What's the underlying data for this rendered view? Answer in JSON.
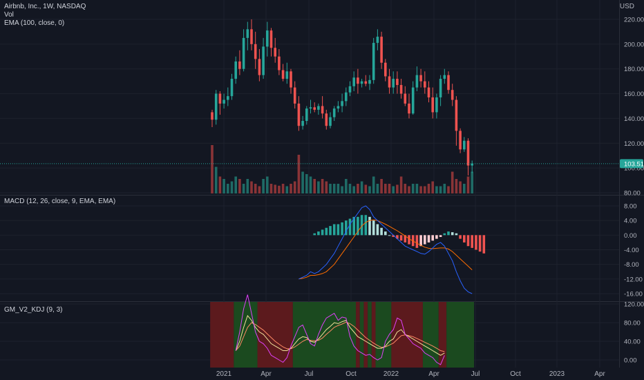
{
  "header": {
    "symbol": "Airbnb, Inc., 1W, NASDAQ",
    "vol_label": "Vol",
    "ema_label": "EMA (100, close, 0)",
    "currency": "USD",
    "last_price": "103.51"
  },
  "colors": {
    "background": "#131722",
    "grid": "#1e222d",
    "up": "#26a69a",
    "down": "#ef5350",
    "up_volume": "#1f6b66",
    "down_volume": "#8a3437",
    "macd_line": "#2962ff",
    "signal_line": "#ff6d00",
    "kdj_bull_bg": "#1b4a1f",
    "kdj_bear_bg": "#5c1a1d",
    "k_line": "#f2e39b",
    "d_line": "#ff8a65",
    "j_line": "#e040fb",
    "price_tag": "#26a69a"
  },
  "panels": {
    "macd_label": "MACD (12, 26, close, 9, EMA, EMA)",
    "kdj_label": "GM_V2_KDJ (9, 3)"
  },
  "chart_data": [
    {
      "type": "candlestick",
      "title": "Airbnb, Inc., 1W, NASDAQ",
      "ylim": [
        75,
        225
      ],
      "y_ticks": [
        "220.00",
        "200.00",
        "180.00",
        "160.00",
        "140.00",
        "120.00",
        "100.00",
        "80.00"
      ],
      "x_ticks": [
        "2021",
        "Apr",
        "Jul",
        "Oct",
        "2022",
        "Apr",
        "Jul",
        "Oct",
        "2023",
        "Apr"
      ],
      "candles": [
        [
          145,
          147,
          133,
          139
        ],
        [
          139,
          163,
          135,
          160
        ],
        [
          160,
          162,
          143,
          152
        ],
        [
          152,
          160,
          148,
          155
        ],
        [
          155,
          165,
          150,
          158
        ],
        [
          158,
          176,
          155,
          172
        ],
        [
          172,
          190,
          168,
          186
        ],
        [
          186,
          195,
          175,
          180
        ],
        [
          180,
          212,
          178,
          205
        ],
        [
          205,
          218,
          195,
          212
        ],
        [
          212,
          220,
          195,
          200
        ],
        [
          200,
          210,
          180,
          188
        ],
        [
          188,
          196,
          170,
          175
        ],
        [
          175,
          205,
          172,
          198
        ],
        [
          198,
          218,
          190,
          211
        ],
        [
          211,
          213,
          190,
          197
        ],
        [
          197,
          205,
          185,
          190
        ],
        [
          190,
          196,
          175,
          179
        ],
        [
          179,
          184,
          170,
          172
        ],
        [
          172,
          185,
          168,
          178
        ],
        [
          178,
          180,
          160,
          165
        ],
        [
          165,
          170,
          148,
          152
        ],
        [
          152,
          158,
          130,
          134
        ],
        [
          134,
          142,
          131,
          138
        ],
        [
          138,
          150,
          135,
          148
        ],
        [
          148,
          155,
          144,
          149
        ],
        [
          149,
          153,
          145,
          147
        ],
        [
          147,
          152,
          143,
          150
        ],
        [
          150,
          158,
          140,
          144
        ],
        [
          144,
          147,
          131,
          134
        ],
        [
          134,
          145,
          132,
          141
        ],
        [
          141,
          150,
          138,
          148
        ],
        [
          148,
          154,
          145,
          150
        ],
        [
          150,
          160,
          145,
          154
        ],
        [
          154,
          165,
          150,
          161
        ],
        [
          161,
          170,
          158,
          166
        ],
        [
          166,
          178,
          162,
          173
        ],
        [
          173,
          180,
          160,
          168
        ],
        [
          168,
          172,
          165,
          170
        ],
        [
          170,
          175,
          166,
          168
        ],
        [
          168,
          175,
          163,
          171
        ],
        [
          171,
          205,
          168,
          201
        ],
        [
          201,
          212,
          195,
          206
        ],
        [
          206,
          210,
          180,
          185
        ],
        [
          185,
          188,
          170,
          174
        ],
        [
          174,
          180,
          160,
          165
        ],
        [
          165,
          178,
          160,
          172
        ],
        [
          172,
          178,
          160,
          167
        ],
        [
          167,
          172,
          156,
          160
        ],
        [
          160,
          166,
          150,
          152
        ],
        [
          152,
          160,
          140,
          144
        ],
        [
          144,
          170,
          143,
          165
        ],
        [
          165,
          182,
          162,
          175
        ],
        [
          175,
          180,
          165,
          170
        ],
        [
          170,
          178,
          160,
          165
        ],
        [
          165,
          170,
          153,
          157
        ],
        [
          157,
          165,
          140,
          145
        ],
        [
          145,
          160,
          140,
          157
        ],
        [
          157,
          175,
          150,
          172
        ],
        [
          172,
          180,
          168,
          175
        ],
        [
          175,
          178,
          160,
          163
        ],
        [
          163,
          168,
          150,
          155
        ],
        [
          155,
          158,
          118,
          130
        ],
        [
          130,
          132,
          112,
          115
        ],
        [
          115,
          125,
          113,
          122
        ],
        [
          122,
          124,
          94,
          102
        ],
        [
          102,
          106,
          96,
          103.51
        ]
      ],
      "volume_relative": [
        1.0,
        0.55,
        0.35,
        0.3,
        0.2,
        0.25,
        0.35,
        0.3,
        0.2,
        0.3,
        0.25,
        0.2,
        0.15,
        0.3,
        0.35,
        0.2,
        0.18,
        0.16,
        0.2,
        0.15,
        0.2,
        0.25,
        0.8,
        0.45,
        0.4,
        0.35,
        0.3,
        0.25,
        0.3,
        0.25,
        0.2,
        0.2,
        0.2,
        0.15,
        0.3,
        0.2,
        0.15,
        0.2,
        0.25,
        0.18,
        0.15,
        0.35,
        0.2,
        0.3,
        0.2,
        0.2,
        0.15,
        0.18,
        0.35,
        0.2,
        0.15,
        0.2,
        0.2,
        0.15,
        0.15,
        0.2,
        0.25,
        0.15,
        0.15,
        0.2,
        0.15,
        0.45,
        0.3,
        0.25,
        0.2,
        0.35,
        0.45
      ]
    },
    {
      "type": "macd",
      "ylim": [
        -18,
        10
      ],
      "y_ticks": [
        "8.00",
        "4.00",
        "0.00",
        "-4.00",
        "-8.00",
        "-12.00",
        "-16.00"
      ],
      "histogram_start_index": 26,
      "histogram": [
        0.5,
        1,
        1.5,
        2,
        2.5,
        3,
        3,
        3.5,
        4,
        4.5,
        5,
        5,
        5.5,
        5.5,
        5,
        4,
        3,
        2,
        1,
        0,
        -0.5,
        -1,
        -1.5,
        -2,
        -2.5,
        -3,
        -3.5,
        -3,
        -2.5,
        -2,
        -1.5,
        -1,
        -0.5,
        0.5,
        1,
        0.8,
        0.5,
        -1,
        -2,
        -3,
        -3.5,
        -4,
        -4.5,
        -5
      ],
      "macd_start_index": 22,
      "macd": [
        -12,
        -11.5,
        -11,
        -10,
        -10.5,
        -10,
        -9,
        -8,
        -6.5,
        -5,
        -3,
        -1,
        1,
        3,
        4.5,
        6,
        7.5,
        8,
        7,
        5,
        4,
        3,
        2,
        1,
        0,
        -1,
        -2,
        -3,
        -3.5,
        -4,
        -4.5,
        -5,
        -5.2,
        -4.5,
        -3.5,
        -2.5,
        -2,
        -3,
        -5,
        -7,
        -10,
        -12.5,
        -14.5,
        -15.5,
        -16
      ],
      "signal": [
        -12,
        -11.8,
        -11.5,
        -11,
        -11,
        -10.8,
        -10.5,
        -10,
        -9,
        -8,
        -6.5,
        -5,
        -3.5,
        -2,
        -0.5,
        1,
        2.5,
        3.5,
        4,
        4.2,
        4,
        3.5,
        3,
        2.4,
        1.8,
        1.2,
        0.5,
        -0.2,
        -1,
        -1.6,
        -2.2,
        -2.8,
        -3.3,
        -3.6,
        -3.7,
        -3.6,
        -3.5,
        -3.5,
        -3.8,
        -4.5,
        -5.5,
        -6.5,
        -7.5,
        -8.5,
        -9.5
      ]
    },
    {
      "type": "kdj",
      "ylim": [
        -10,
        125
      ],
      "y_ticks": [
        "120.00",
        "80.00",
        "40.00",
        "0.00"
      ],
      "bands": [
        {
          "start": 0,
          "end": 6,
          "state": "bear"
        },
        {
          "start": 6,
          "end": 12,
          "state": "bull"
        },
        {
          "start": 12,
          "end": 21,
          "state": "bear"
        },
        {
          "start": 21,
          "end": 37,
          "state": "bull"
        },
        {
          "start": 37,
          "end": 38,
          "state": "bear"
        },
        {
          "start": 38,
          "end": 39,
          "state": "bull"
        },
        {
          "start": 39,
          "end": 40,
          "state": "bear"
        },
        {
          "start": 40,
          "end": 41,
          "state": "bull"
        },
        {
          "start": 41,
          "end": 42,
          "state": "bear"
        },
        {
          "start": 42,
          "end": 46,
          "state": "bull"
        },
        {
          "start": 46,
          "end": 54,
          "state": "bear"
        },
        {
          "start": 54,
          "end": 58,
          "state": "bull"
        },
        {
          "start": 58,
          "end": 60,
          "state": "bear"
        },
        {
          "start": 60,
          "end": 67,
          "state": "bull"
        }
      ],
      "k_start_index": 6,
      "k": [
        20,
        40,
        70,
        95,
        85,
        70,
        60,
        55,
        45,
        35,
        30,
        25,
        20,
        20,
        25,
        35,
        45,
        50,
        48,
        40,
        38,
        45,
        55,
        65,
        72,
        80,
        78,
        82,
        85,
        70,
        60,
        50,
        45,
        40,
        35,
        30,
        25,
        25,
        30,
        40,
        45,
        60,
        65,
        55,
        50,
        45,
        40,
        35,
        30,
        25,
        20,
        15,
        10,
        15
      ],
      "d": [
        20,
        30,
        50,
        70,
        80,
        76,
        70,
        64,
        56,
        48,
        40,
        34,
        28,
        24,
        24,
        28,
        34,
        40,
        44,
        42,
        41,
        42,
        47,
        55,
        62,
        70,
        74,
        77,
        81,
        78,
        72,
        64,
        56,
        48,
        42,
        36,
        31,
        27,
        28,
        32,
        36,
        44,
        52,
        54,
        52,
        50,
        46,
        42,
        38,
        34,
        30,
        25,
        20,
        18
      ],
      "j": [
        20,
        60,
        110,
        140,
        100,
        60,
        40,
        35,
        25,
        10,
        5,
        0,
        -5,
        5,
        30,
        50,
        70,
        75,
        55,
        35,
        30,
        55,
        75,
        90,
        95,
        100,
        85,
        92,
        90,
        50,
        30,
        20,
        15,
        10,
        12,
        5,
        0,
        5,
        40,
        55,
        65,
        90,
        85,
        55,
        45,
        35,
        30,
        25,
        15,
        10,
        5,
        -5,
        -10,
        10
      ]
    }
  ]
}
